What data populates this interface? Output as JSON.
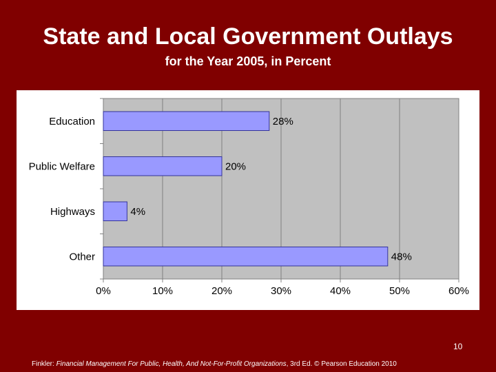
{
  "slide": {
    "page_number": "10",
    "footer": {
      "prefix": "Finkler: ",
      "book": "Financial Management For Public, Health, And Not-For-Profit Organizations",
      "suffix": ", 3rd Ed. © Pearson Education 2010"
    }
  },
  "colors": {
    "background": "#800000",
    "plot_area": "#c0c0c0",
    "bar_fill": "#9999ff",
    "bar_stroke": "#333399"
  },
  "chart_data": {
    "type": "bar",
    "orientation": "horizontal",
    "title": "State and Local Government Outlays",
    "subtitle": "for the Year 2005, in Percent",
    "categories": [
      "Education",
      "Public Welfare",
      "Highways",
      "Other"
    ],
    "values": [
      28,
      20,
      4,
      48
    ],
    "data_labels": [
      "28%",
      "20%",
      "4%",
      "48%"
    ],
    "xlim": [
      0,
      60
    ],
    "x_ticks": [
      0,
      10,
      20,
      30,
      40,
      50,
      60
    ],
    "x_tick_labels": [
      "0%",
      "10%",
      "20%",
      "30%",
      "40%",
      "50%",
      "60%"
    ],
    "grid": true,
    "legend": "none"
  }
}
